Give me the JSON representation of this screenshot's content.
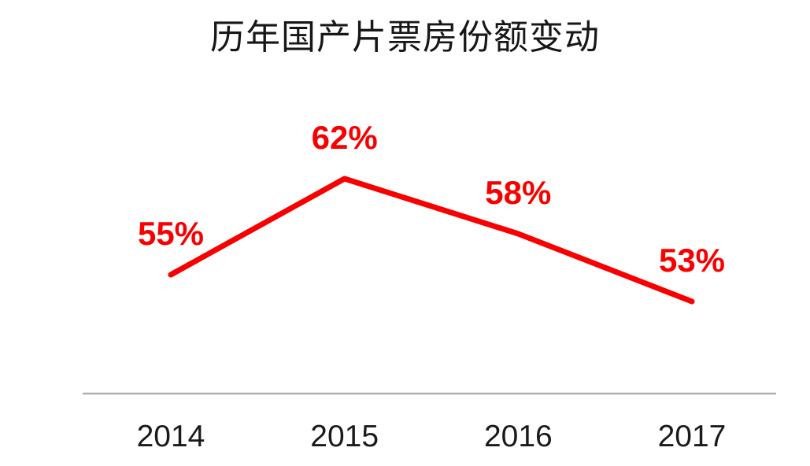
{
  "chart_data": {
    "type": "line",
    "title": "历年国产片票房份额变动",
    "categories": [
      "2014",
      "2015",
      "2016",
      "2017"
    ],
    "values": [
      55,
      62,
      58,
      53
    ],
    "point_labels": [
      "55%",
      "62%",
      "58%",
      "53%"
    ],
    "xlabel": "",
    "ylabel": "",
    "ylim": [
      48,
      68
    ],
    "grid": false,
    "legend": "none",
    "colors": {
      "line": "#f80000",
      "point_label": "#f80000",
      "axis_line": "#b0b0b0",
      "tick_label": "#1a1a1a",
      "title": "#171717",
      "background": "#ffffff"
    }
  }
}
